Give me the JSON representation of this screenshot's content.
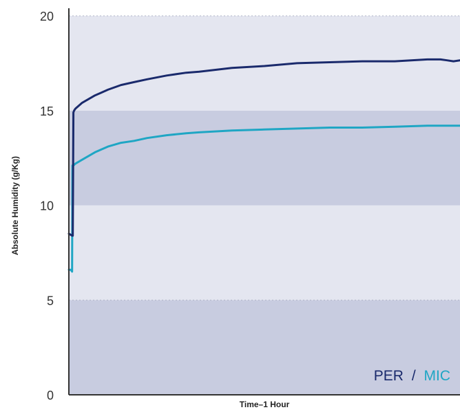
{
  "chart_data": {
    "type": "line",
    "xlabel": "Time–1 Hour",
    "ylabel": "Absolute Humidity (g/Kg)",
    "ylim": [
      0,
      20
    ],
    "yticks": [
      0,
      5,
      10,
      15,
      20
    ],
    "xlim": [
      0,
      60
    ],
    "grid": "dotted horizontal at 5 and 20; alternating shaded bands",
    "bands": [
      {
        "from": 0,
        "to": 5,
        "color": "#c8cce0"
      },
      {
        "from": 5,
        "to": 10,
        "color": "#e4e6f0"
      },
      {
        "from": 10,
        "to": 15,
        "color": "#c8cce0"
      },
      {
        "from": 15,
        "to": 20,
        "color": "#e4e6f0"
      }
    ],
    "legend": {
      "placement": "bottom-right",
      "separator": "/",
      "separator_color": "#1a2a6c"
    },
    "series": [
      {
        "name": "PER",
        "color": "#1a2a6c",
        "x": [
          0,
          0.5,
          0.6,
          0.65,
          0.7,
          0.8,
          1,
          2,
          3,
          4,
          5,
          6,
          8,
          10,
          12,
          15,
          18,
          20,
          25,
          30,
          35,
          40,
          45,
          50,
          55,
          57,
          58,
          59,
          60
        ],
        "y": [
          8.5,
          8.4,
          8.4,
          12.0,
          14.9,
          15.0,
          15.1,
          15.4,
          15.6,
          15.8,
          15.95,
          16.1,
          16.35,
          16.5,
          16.65,
          16.85,
          17.0,
          17.05,
          17.25,
          17.35,
          17.5,
          17.55,
          17.6,
          17.6,
          17.7,
          17.7,
          17.65,
          17.6,
          17.65
        ]
      },
      {
        "name": "MIC",
        "color": "#1fa6c4",
        "x": [
          0,
          0.3,
          0.5,
          0.55,
          0.6,
          0.7,
          1,
          2,
          3,
          4,
          5,
          6,
          8,
          10,
          12,
          15,
          18,
          20,
          25,
          30,
          35,
          40,
          45,
          50,
          55,
          60
        ],
        "y": [
          6.6,
          6.6,
          6.5,
          12.1,
          12.1,
          12.1,
          12.2,
          12.4,
          12.6,
          12.8,
          12.95,
          13.1,
          13.3,
          13.4,
          13.55,
          13.7,
          13.8,
          13.85,
          13.95,
          14.0,
          14.05,
          14.1,
          14.1,
          14.15,
          14.2,
          14.2
        ]
      }
    ]
  }
}
